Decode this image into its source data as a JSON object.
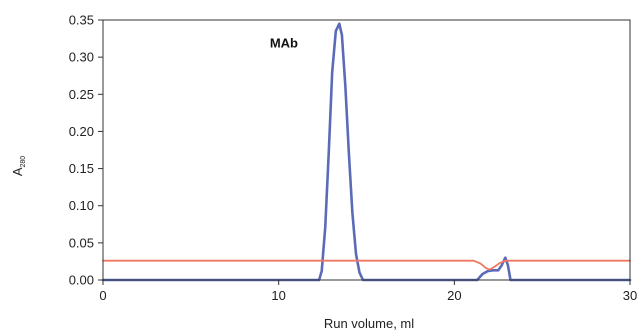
{
  "chart_data": {
    "type": "line",
    "title": "",
    "xlabel": "Run volume, ml",
    "ylabel": "A",
    "ylabel_subscript": "280",
    "xlim": [
      0,
      30
    ],
    "ylim": [
      0,
      0.35
    ],
    "x_ticks": [
      {
        "value": 0,
        "label": "0"
      },
      {
        "value": 10,
        "label": "10"
      },
      {
        "value": 20,
        "label": "20"
      },
      {
        "value": 30,
        "label": "30"
      }
    ],
    "y_ticks": [
      {
        "value": 0,
        "label": "0.00"
      },
      {
        "value": 0.05,
        "label": "0.05"
      },
      {
        "value": 0.1,
        "label": "0.10"
      },
      {
        "value": 0.15,
        "label": "0.15"
      },
      {
        "value": 0.2,
        "label": "0.20"
      },
      {
        "value": 0.25,
        "label": "0.25"
      },
      {
        "value": 0.3,
        "label": "0.30"
      },
      {
        "value": 0.35,
        "label": "0.35"
      }
    ],
    "grid": false,
    "annotations": [
      {
        "text": "MAb",
        "x": 10.3,
        "y": 0.313
      }
    ],
    "series": [
      {
        "color": "#5b6bb8",
        "points": [
          [
            0,
            0
          ],
          [
            12.3,
            0
          ],
          [
            12.45,
            0.012
          ],
          [
            12.65,
            0.07
          ],
          [
            12.85,
            0.17
          ],
          [
            13.05,
            0.28
          ],
          [
            13.25,
            0.335
          ],
          [
            13.45,
            0.345
          ],
          [
            13.6,
            0.33
          ],
          [
            13.8,
            0.26
          ],
          [
            14.0,
            0.17
          ],
          [
            14.2,
            0.09
          ],
          [
            14.4,
            0.035
          ],
          [
            14.6,
            0.01
          ],
          [
            14.8,
            0
          ],
          [
            21.3,
            0
          ],
          [
            21.6,
            0.008
          ],
          [
            21.9,
            0.012
          ],
          [
            22.2,
            0.013
          ],
          [
            22.5,
            0.013
          ],
          [
            22.7,
            0.02
          ],
          [
            22.9,
            0.03
          ],
          [
            23.05,
            0.02
          ],
          [
            23.2,
            0
          ],
          [
            30,
            0
          ]
        ]
      },
      {
        "color": "#f07860",
        "points": [
          [
            0,
            0.026
          ],
          [
            21.1,
            0.026
          ],
          [
            21.5,
            0.022
          ],
          [
            21.8,
            0.016
          ],
          [
            22.0,
            0.014
          ],
          [
            22.3,
            0.018
          ],
          [
            22.6,
            0.023
          ],
          [
            22.9,
            0.026
          ],
          [
            30,
            0.026
          ]
        ]
      }
    ]
  }
}
